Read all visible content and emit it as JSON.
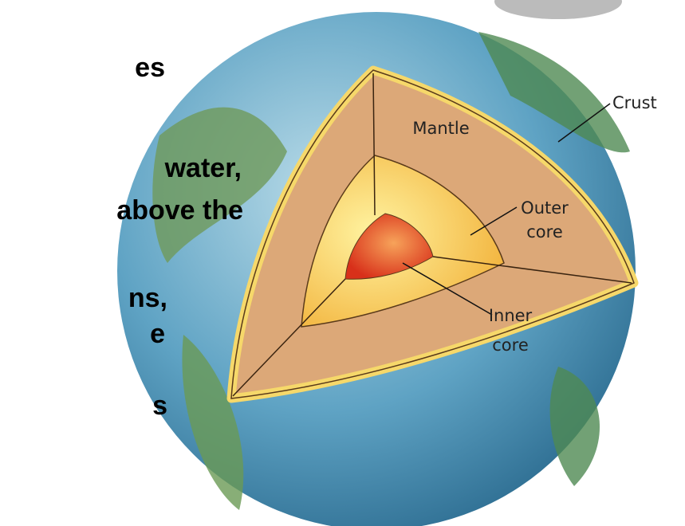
{
  "slide_text": [
    "es",
    "water,",
    "above the",
    "ns,",
    "e",
    "s"
  ],
  "diagram": {
    "labels": {
      "mantle": "Mantle",
      "crust": "Crust",
      "outer_core": [
        "Outer",
        "core"
      ],
      "inner_core": [
        "Inner",
        "core"
      ]
    }
  }
}
